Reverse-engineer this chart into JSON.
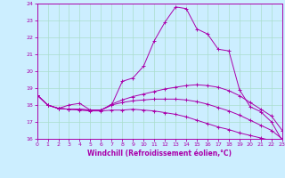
{
  "xlabel": "Windchill (Refroidissement éolien,°C)",
  "bg_color": "#cceeff",
  "grid_color": "#aaddcc",
  "line_color": "#aa00aa",
  "spine_color": "#aa00aa",
  "xmin": 0,
  "xmax": 23,
  "ymin": 16,
  "ymax": 24,
  "lines": [
    {
      "x": [
        0,
        1,
        2,
        3,
        4,
        5,
        6,
        7,
        8,
        9,
        10,
        11,
        12,
        13,
        14,
        15,
        16,
        17,
        18,
        19,
        20,
        21,
        22,
        23
      ],
      "y": [
        18.6,
        18.0,
        17.8,
        18.0,
        18.1,
        17.7,
        17.7,
        18.0,
        19.4,
        19.6,
        20.3,
        21.8,
        22.9,
        23.8,
        23.7,
        22.5,
        22.2,
        21.3,
        21.2,
        18.9,
        17.9,
        17.6,
        17.0,
        15.9
      ]
    },
    {
      "x": [
        0,
        1,
        2,
        3,
        4,
        5,
        6,
        7,
        8,
        9,
        10,
        11,
        12,
        13,
        14,
        15,
        16,
        17,
        18,
        19,
        20,
        21,
        22,
        23
      ],
      "y": [
        18.6,
        18.0,
        17.8,
        17.75,
        17.75,
        17.7,
        17.7,
        18.05,
        18.3,
        18.5,
        18.65,
        18.8,
        18.95,
        19.05,
        19.15,
        19.2,
        19.15,
        19.05,
        18.85,
        18.55,
        18.15,
        17.75,
        17.35,
        16.5
      ]
    },
    {
      "x": [
        0,
        1,
        2,
        3,
        4,
        5,
        6,
        7,
        8,
        9,
        10,
        11,
        12,
        13,
        14,
        15,
        16,
        17,
        18,
        19,
        20,
        21,
        22,
        23
      ],
      "y": [
        18.6,
        18.0,
        17.8,
        17.75,
        17.7,
        17.65,
        17.65,
        17.7,
        17.7,
        17.75,
        17.7,
        17.65,
        17.55,
        17.45,
        17.3,
        17.1,
        16.9,
        16.7,
        16.55,
        16.35,
        16.2,
        16.05,
        15.9,
        15.9
      ]
    },
    {
      "x": [
        0,
        1,
        2,
        3,
        4,
        5,
        6,
        7,
        8,
        9,
        10,
        11,
        12,
        13,
        14,
        15,
        16,
        17,
        18,
        19,
        20,
        21,
        22,
        23
      ],
      "y": [
        18.6,
        18.0,
        17.8,
        17.75,
        17.75,
        17.7,
        17.7,
        18.0,
        18.15,
        18.25,
        18.3,
        18.35,
        18.35,
        18.35,
        18.3,
        18.2,
        18.05,
        17.85,
        17.65,
        17.4,
        17.1,
        16.8,
        16.5,
        16.0
      ]
    }
  ],
  "yticks": [
    16,
    17,
    18,
    19,
    20,
    21,
    22,
    23,
    24
  ],
  "xticks": [
    0,
    1,
    2,
    3,
    4,
    5,
    6,
    7,
    8,
    9,
    10,
    11,
    12,
    13,
    14,
    15,
    16,
    17,
    18,
    19,
    20,
    21,
    22,
    23
  ],
  "xlabel_fontsize": 5.5,
  "tick_fontsize": 4.5,
  "linewidth": 0.7,
  "markersize": 2.5
}
